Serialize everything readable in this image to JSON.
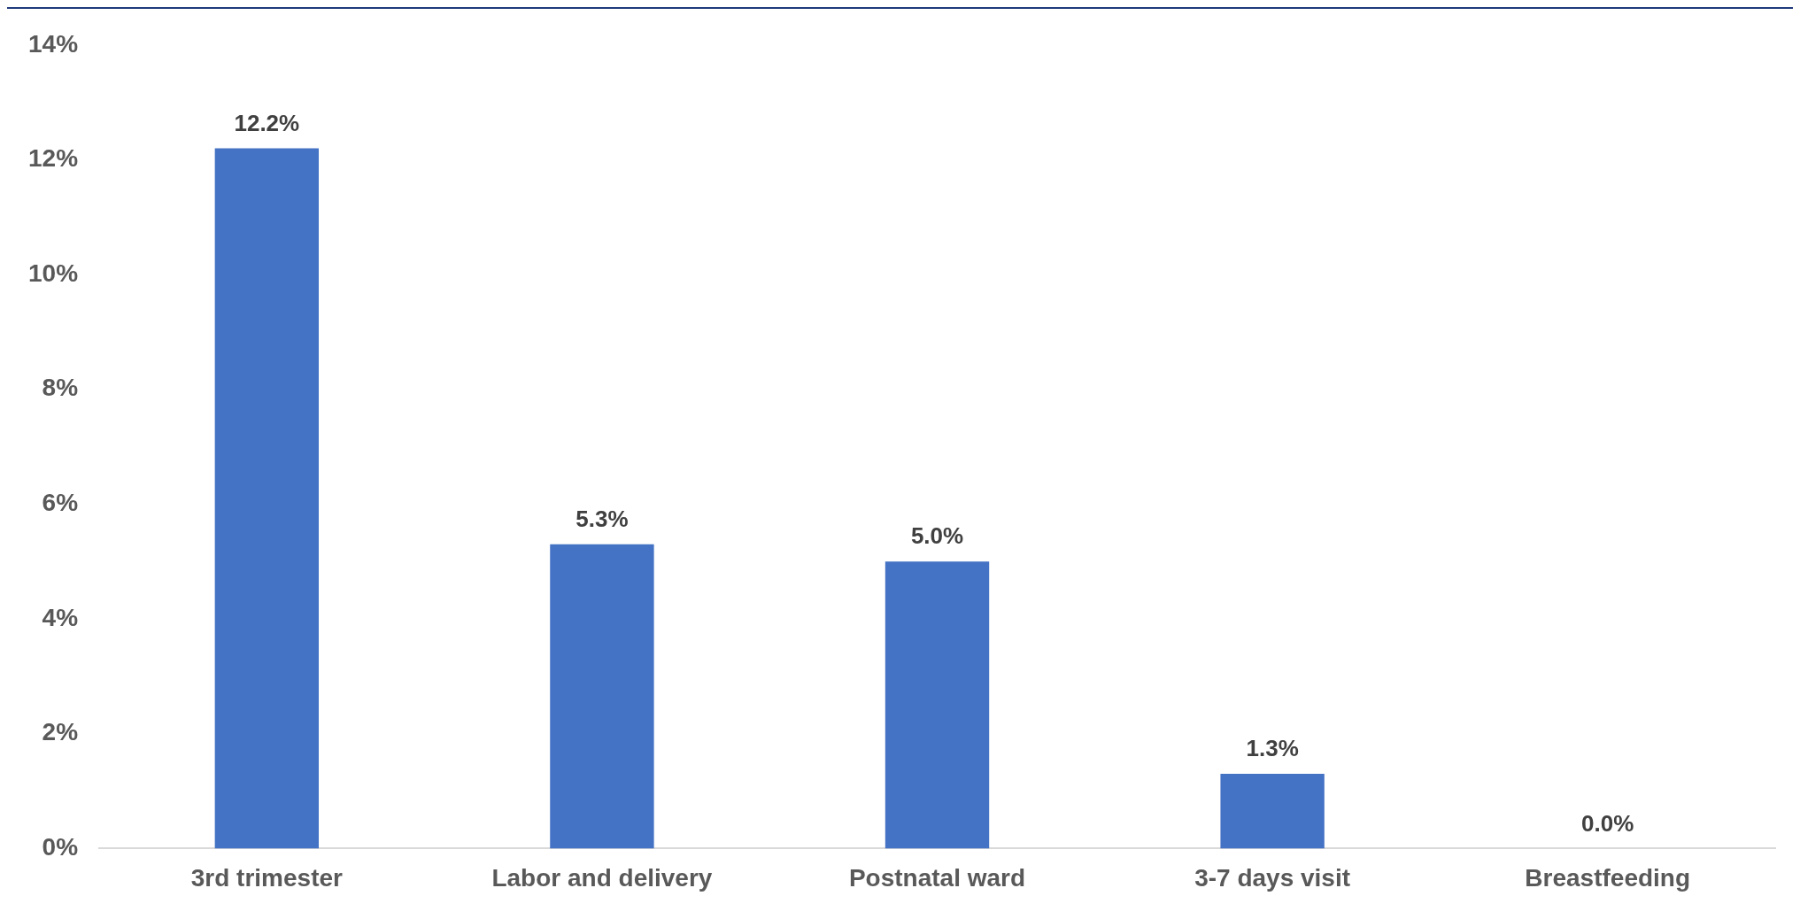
{
  "chart_data": {
    "type": "bar",
    "categories": [
      "3rd trimester",
      "Labor and delivery",
      "Postnatal ward",
      "3-7 days visit",
      "Breastfeeding"
    ],
    "values": [
      12.2,
      5.3,
      5.0,
      1.3,
      0.0
    ],
    "color": "#4472c4",
    "value_labels": [
      "12.2%",
      "5.3%",
      "5.0%",
      "1.3%",
      "0.0%"
    ],
    "ylim": [
      0,
      14
    ],
    "yticks": [
      {
        "value": 0,
        "label": "0%"
      },
      {
        "value": 2,
        "label": "2%"
      },
      {
        "value": 4,
        "label": "4%"
      },
      {
        "value": 6,
        "label": "6%"
      },
      {
        "value": 8,
        "label": "8%"
      },
      {
        "value": 10,
        "label": "10%"
      },
      {
        "value": 12,
        "label": "12%"
      },
      {
        "value": 14,
        "label": "14%"
      }
    ],
    "grid": false,
    "legend": false
  }
}
